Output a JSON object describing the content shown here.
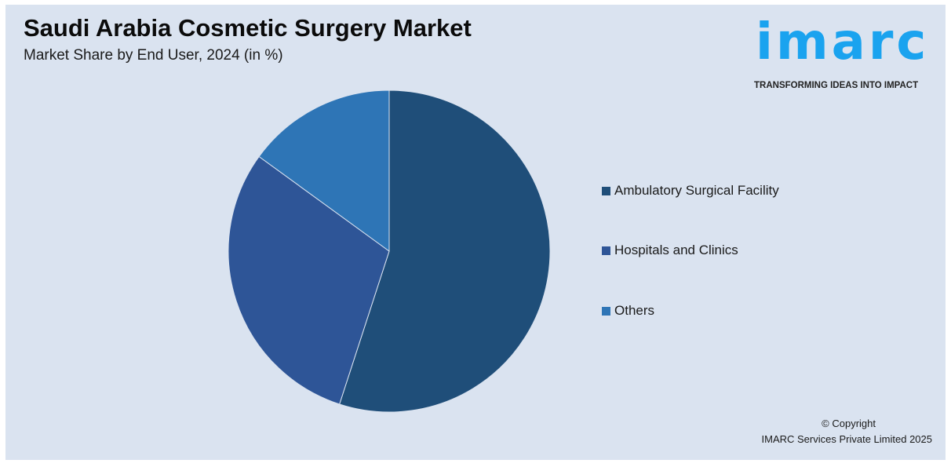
{
  "chart_data": {
    "type": "pie",
    "title": "Saudi Arabia Cosmetic Surgery Market",
    "subtitle": "Market Share by End User, 2024 (in %)",
    "categories": [
      "Ambulatory Surgical Facility",
      "Hospitals and Clinics",
      "Others"
    ],
    "values": [
      55,
      30,
      15
    ],
    "colors": [
      "#1f4e79",
      "#2e5597",
      "#2e75b6"
    ],
    "start_angle": "12 o'clock",
    "direction": "clockwise",
    "legend_position": "right"
  },
  "logo": {
    "word": "imarc",
    "tagline": "TRANSFORMING IDEAS INTO IMPACT",
    "color": "#1aa3ef"
  },
  "footer": {
    "copyright": "© Copyright",
    "company": "IMARC Services Private Limited 2025"
  },
  "background": "#dae3f0"
}
